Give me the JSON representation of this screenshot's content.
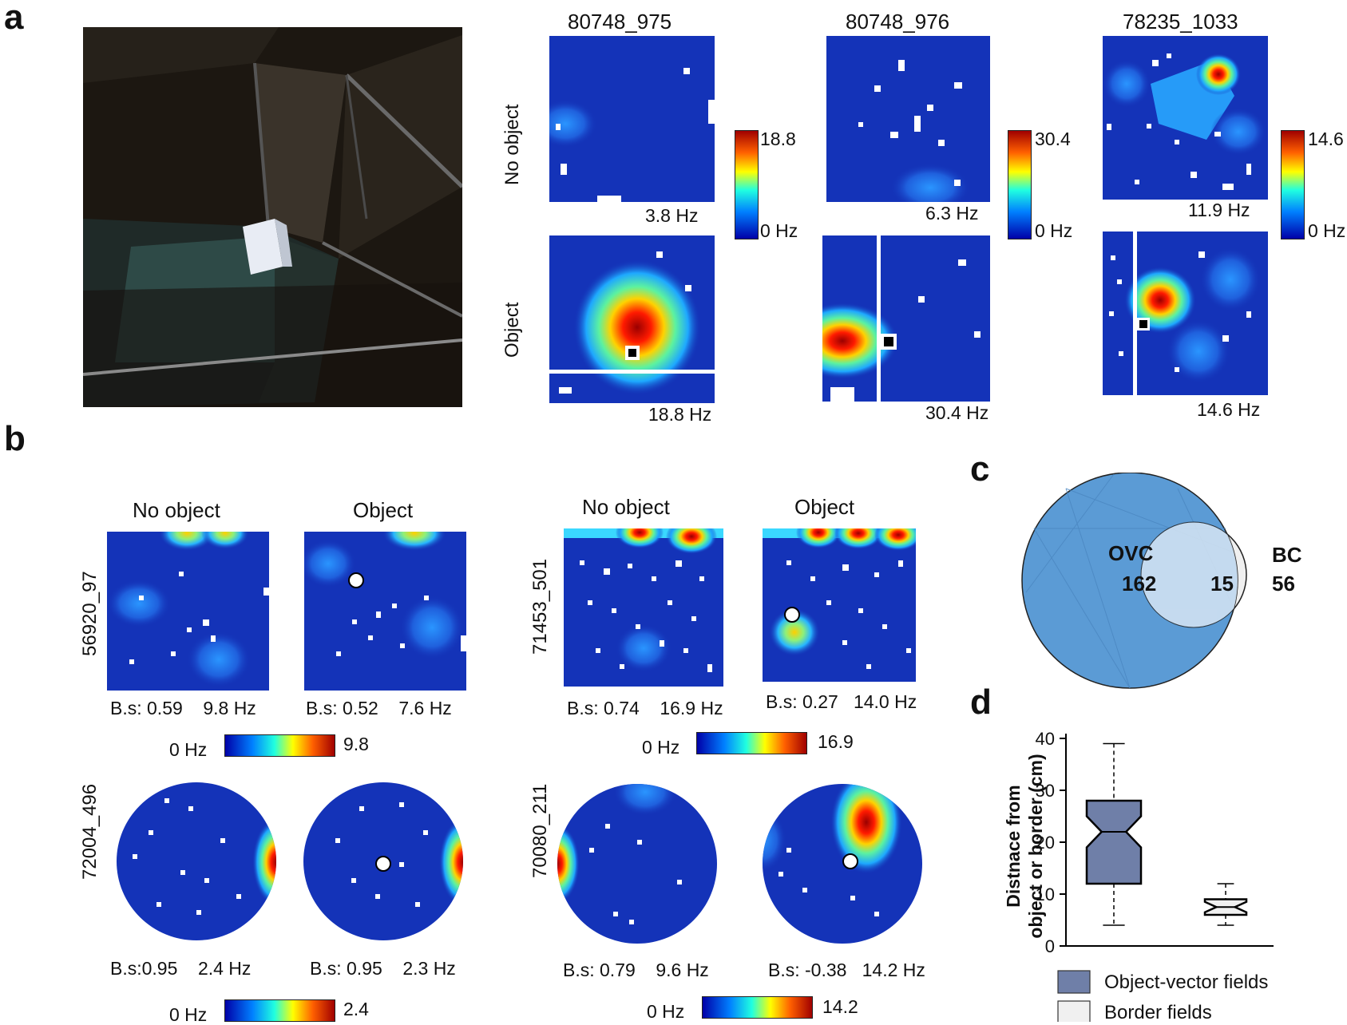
{
  "panel_labels": [
    "a",
    "b",
    "c",
    "d"
  ],
  "panel_a": {
    "cells": [
      {
        "id": "80748_975",
        "scale_max": "18.8",
        "scale_min": "0 Hz",
        "peak_no_object": "3.8 Hz",
        "peak_object": "18.8 Hz"
      },
      {
        "id": "80748_976",
        "scale_max": "30.4",
        "scale_min": "0 Hz",
        "peak_no_object": "6.3 Hz",
        "peak_object": "30.4 Hz"
      },
      {
        "id": "78235_1033",
        "scale_max": "14.6",
        "scale_min": "0 Hz",
        "peak_no_object": "11.9 Hz",
        "peak_object": "14.6 Hz"
      }
    ],
    "row_labels": [
      "No  object",
      "Object"
    ]
  },
  "panel_b": {
    "col_headers": [
      "No object",
      "Object"
    ],
    "groups": [
      {
        "cell": "56920_97",
        "stat_no": "B.s: 0.59    9.8 Hz",
        "stat_obj": "B.s: 0.52    7.6 Hz",
        "scale_min": "0 Hz",
        "scale_max": "9.8"
      },
      {
        "cell": "71453_501",
        "stat_no": "B.s: 0.74    16.9 Hz",
        "stat_obj": "B.s: 0.27   14.0 Hz",
        "scale_min": "0 Hz",
        "scale_max": "16.9"
      },
      {
        "cell": "72004_496",
        "stat_no": "B.s:0.95    2.4 Hz",
        "stat_obj": "B.s: 0.95    2.3 Hz",
        "scale_min": "0 Hz",
        "scale_max": "2.4"
      },
      {
        "cell": "70080_211",
        "stat_no": "B.s: 0.79    9.6 Hz",
        "stat_obj": "B.s: -0.38   14.2 Hz",
        "scale_min": "0 Hz",
        "scale_max": "14.2"
      }
    ]
  },
  "panel_c": {
    "ovc_label": "OVC",
    "ovc_count": "162",
    "overlap_count": "15",
    "bc_label": "BC",
    "bc_count": "56"
  },
  "colors": {
    "ovc_fill": "#5b9bd5",
    "bc_fill": "#f0f0f0",
    "ovc_box": "#6f7fa8",
    "border_box": "#f0f0f0"
  },
  "chart_data": {
    "type": "box",
    "ylabel": "Distnace from object or border (cm)",
    "ylabel_lines": [
      "Distnace from",
      "object or border (cm)"
    ],
    "ylim": [
      0,
      40
    ],
    "yticks": [
      "0",
      "10",
      "20",
      "30",
      "40"
    ],
    "legend": [
      "Object-vector fields",
      "Border fields"
    ],
    "legend_position": "bottom",
    "series": [
      {
        "name": "Object-vector fields",
        "whisker_low": 4,
        "q1": 12,
        "median": 22,
        "q3": 28,
        "whisker_high": 39,
        "notch_low": 19,
        "notch_high": 25
      },
      {
        "name": "Border fields",
        "whisker_low": 4,
        "q1": 6,
        "median": 7.5,
        "q3": 9,
        "whisker_high": 12,
        "notch_low": 6.5,
        "notch_high": 8.5
      }
    ]
  }
}
